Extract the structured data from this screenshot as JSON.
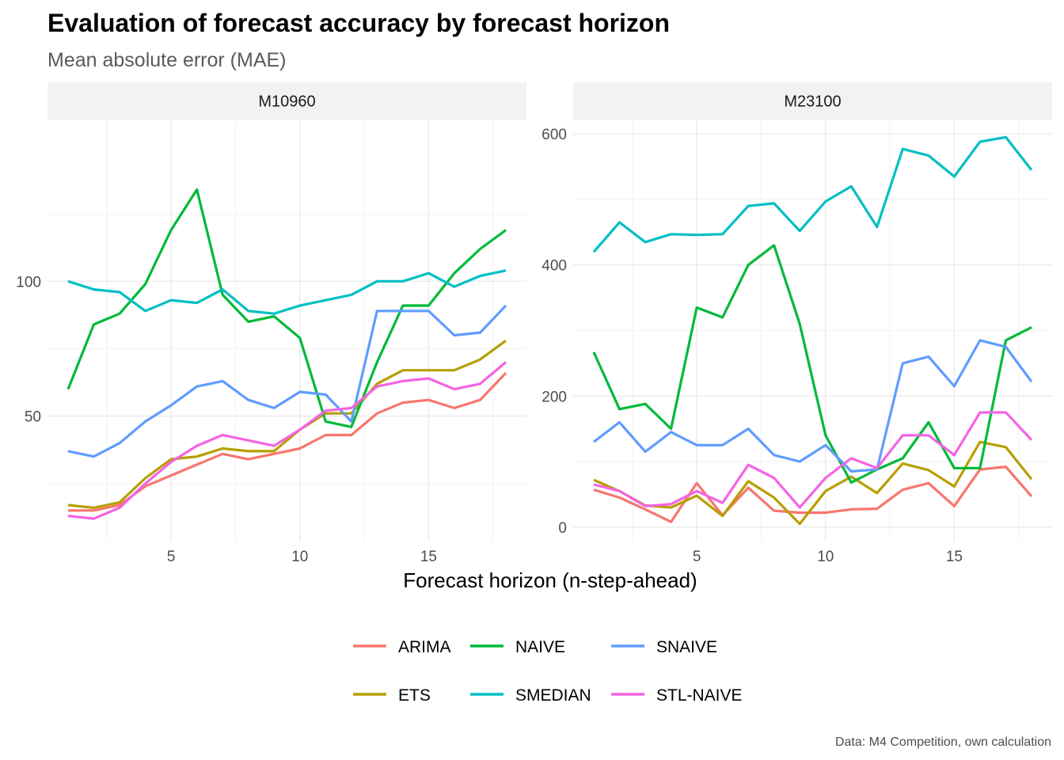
{
  "title": "Evaluation of forecast accuracy by forecast horizon",
  "subtitle": "Mean absolute error (MAE)",
  "xlabel": "Forecast horizon (n-step-ahead)",
  "caption": "Data: M4 Competition, own calculation",
  "colors": {
    "ARIMA": "#F8766D",
    "ETS": "#B79F00",
    "NAIVE": "#00BA38",
    "SMEDIAN": "#00BFC4",
    "SNAIVE": "#619CFF",
    "STL-NAIVE": "#F564E3"
  },
  "legend": [
    "ARIMA",
    "NAIVE",
    "SNAIVE",
    "ETS",
    "SMEDIAN",
    "STL-NAIVE"
  ],
  "chart_data": [
    {
      "type": "line",
      "panel": "M10960",
      "x": [
        1,
        2,
        3,
        4,
        5,
        6,
        7,
        8,
        9,
        10,
        11,
        12,
        13,
        14,
        15,
        16,
        17,
        18
      ],
      "xlim": [
        0.2,
        18.8
      ],
      "ylim": [
        3.5,
        160
      ],
      "xticks": [
        5,
        10,
        15
      ],
      "yticks": [
        50,
        100
      ],
      "series": [
        {
          "name": "ARIMA",
          "values": [
            15,
            15,
            17,
            24,
            28,
            32,
            36,
            34,
            36,
            38,
            43,
            43,
            51,
            55,
            56,
            53,
            56,
            66
          ]
        },
        {
          "name": "ETS",
          "values": [
            17,
            16,
            18,
            27,
            34,
            35,
            38,
            37,
            37,
            45,
            51,
            51,
            62,
            67,
            67,
            67,
            71,
            78
          ]
        },
        {
          "name": "NAIVE",
          "values": [
            60,
            84,
            88,
            99,
            119,
            134,
            95,
            85,
            87,
            79,
            48,
            46,
            70,
            91,
            91,
            103,
            112,
            119
          ]
        },
        {
          "name": "SMEDIAN",
          "values": [
            100,
            97,
            96,
            89,
            93,
            92,
            97,
            89,
            88,
            91,
            93,
            95,
            100,
            100,
            103,
            98,
            102,
            104
          ]
        },
        {
          "name": "SNAIVE",
          "values": [
            37,
            35,
            40,
            48,
            54,
            61,
            63,
            56,
            53,
            59,
            58,
            48,
            89,
            89,
            89,
            80,
            81,
            91
          ]
        },
        {
          "name": "STL-NAIVE",
          "values": [
            13,
            12,
            16,
            25,
            33,
            39,
            43,
            41,
            39,
            45,
            52,
            53,
            61,
            63,
            64,
            60,
            62,
            70
          ]
        }
      ]
    },
    {
      "type": "line",
      "panel": "M23100",
      "x": [
        1,
        2,
        3,
        4,
        5,
        6,
        7,
        8,
        9,
        10,
        11,
        12,
        13,
        14,
        15,
        16,
        17,
        18
      ],
      "xlim": [
        0.2,
        18.8
      ],
      "ylim": [
        -22,
        622
      ],
      "xticks": [
        5,
        10,
        15
      ],
      "yticks": [
        0,
        200,
        400,
        600
      ],
      "series": [
        {
          "name": "ARIMA",
          "values": [
            57,
            45,
            27,
            8,
            67,
            18,
            60,
            25,
            22,
            22,
            27,
            28,
            57,
            67,
            32,
            88,
            92,
            47
          ]
        },
        {
          "name": "ETS",
          "values": [
            72,
            55,
            33,
            30,
            48,
            17,
            70,
            45,
            5,
            55,
            77,
            52,
            97,
            87,
            62,
            130,
            122,
            73
          ]
        },
        {
          "name": "NAIVE",
          "values": [
            267,
            180,
            188,
            150,
            335,
            320,
            400,
            430,
            310,
            140,
            68,
            88,
            105,
            160,
            90,
            90,
            285,
            305
          ]
        },
        {
          "name": "SMEDIAN",
          "values": [
            420,
            465,
            435,
            447,
            446,
            447,
            490,
            494,
            452,
            497,
            520,
            458,
            577,
            567,
            535,
            588,
            595,
            545
          ]
        },
        {
          "name": "SNAIVE",
          "values": [
            130,
            160,
            115,
            145,
            125,
            125,
            150,
            110,
            100,
            125,
            85,
            88,
            250,
            260,
            215,
            285,
            275,
            222
          ]
        },
        {
          "name": "STL-NAIVE",
          "values": [
            65,
            55,
            32,
            35,
            55,
            37,
            95,
            75,
            30,
            75,
            105,
            90,
            140,
            140,
            110,
            175,
            175,
            133
          ]
        }
      ]
    }
  ]
}
